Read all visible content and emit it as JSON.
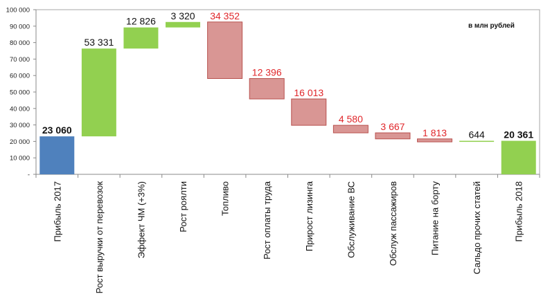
{
  "chart_data": {
    "type": "waterfall",
    "unit_note": "в млн рублей",
    "ylim": [
      0,
      100000
    ],
    "yticks": [
      0,
      10000,
      20000,
      30000,
      40000,
      50000,
      60000,
      70000,
      80000,
      90000,
      100000
    ],
    "ytick_labels": [
      "-",
      "10 000",
      "20 000",
      "30 000",
      "40 000",
      "50 000",
      "60 000",
      "70 000",
      "80 000",
      "90 000",
      "100 000"
    ],
    "grid": false,
    "categories": [
      "Прибыль 2017",
      "Рост выручки от перевозок",
      "Эффект ЧМ (+3%)",
      "Рост роялти",
      "Топливо",
      "Рост оплаты труда",
      "Прирост лизинга",
      "Обслуживание ВС",
      "Обслуж пассажиров",
      "Питание на борту",
      "Сальдо прочих статей",
      "Прибыль 2018"
    ],
    "values": [
      23060,
      53331,
      12826,
      3320,
      -34352,
      -12396,
      -16013,
      -4580,
      -3667,
      -1813,
      644,
      20361
    ],
    "kinds": [
      "total",
      "delta",
      "delta",
      "delta",
      "delta",
      "delta",
      "delta",
      "delta",
      "delta",
      "delta",
      "delta",
      "total"
    ],
    "value_labels": [
      "23 060",
      "53 331",
      "12 826",
      "3 320",
      "34 352",
      "12 396",
      "16 013",
      "4 580",
      "3 667",
      "1 813",
      "644",
      "20 361"
    ],
    "colors": {
      "start_total": "#4f81bd",
      "increase": "#92d050",
      "decrease": "#d99694",
      "decrease_border": "#b8504d",
      "decrease_label": "#e0262a",
      "end_total": "#92d050"
    }
  }
}
